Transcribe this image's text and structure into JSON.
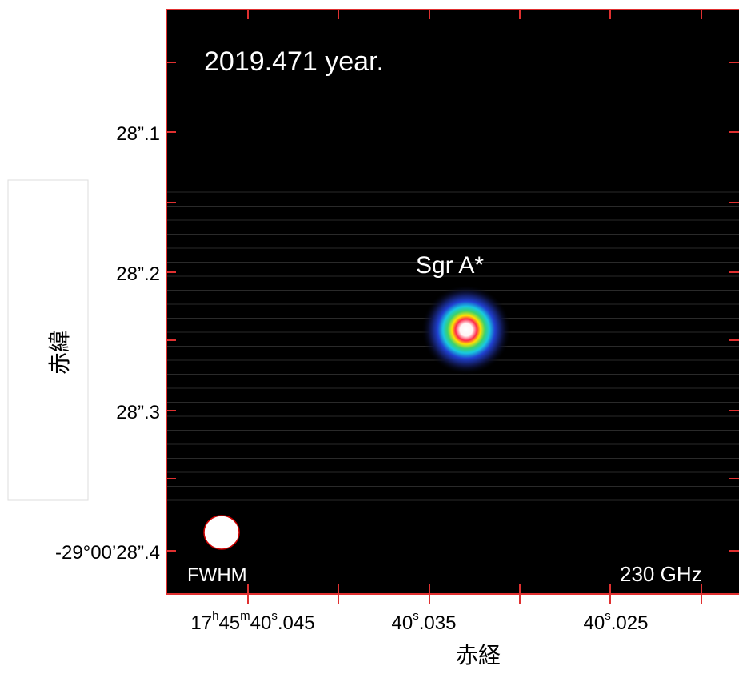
{
  "title": "2019.471 year.",
  "source_label": "Sgr A*",
  "beam_label": "FWHM",
  "frequency_label": "230 GHz",
  "y_axis": {
    "label": "赤緯",
    "ticks": [
      "28”.1",
      "28”.2",
      "28”.3",
      "-29°00’28”.4"
    ]
  },
  "x_axis": {
    "label": "赤経",
    "ticks": [
      "17h45m40s.045",
      "40s.035",
      "40s.025"
    ]
  }
}
